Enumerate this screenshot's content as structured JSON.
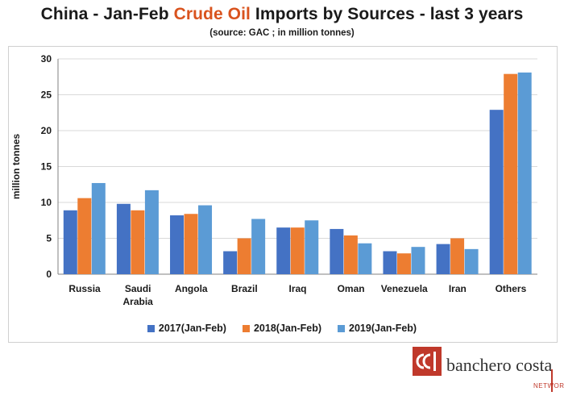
{
  "header": {
    "title_pre": "China - Jan-Feb ",
    "title_highlight": "Crude Oil",
    "title_post": " Imports by Sources - last 3 years",
    "subtitle": "(source: GAC ; in million tonnes)"
  },
  "logo": {
    "mark_icon": "cbc-logo-mark",
    "brand_name": "banchero costa",
    "network_label": "NETWORK"
  },
  "colors": {
    "series": [
      "#4472c4",
      "#ed7d31",
      "#5b9bd5"
    ],
    "title_highlight": "#d9531e",
    "logo_accent": "#c0392b"
  },
  "chart_data": {
    "type": "bar",
    "title": "China - Jan-Feb Crude Oil Imports by Sources - last 3 years",
    "subtitle": "(source: GAC ; in million tonnes)",
    "xlabel": "",
    "ylabel": "million tonnes",
    "ylim": [
      0,
      30
    ],
    "yticks": [
      0,
      5,
      10,
      15,
      20,
      25,
      30
    ],
    "grid": true,
    "legend": "bottom",
    "categories": [
      "Russia",
      "Saudi Arabia",
      "Angola",
      "Brazil",
      "Iraq",
      "Oman",
      "Venezuela",
      "Iran",
      "Others"
    ],
    "category_lines": [
      [
        "Russia"
      ],
      [
        "Saudi",
        "Arabia"
      ],
      [
        "Angola"
      ],
      [
        "Brazil"
      ],
      [
        "Iraq"
      ],
      [
        "Oman"
      ],
      [
        "Venezuela"
      ],
      [
        "Iran"
      ],
      [
        "Others"
      ]
    ],
    "series": [
      {
        "name": "2017(Jan-Feb)",
        "values": [
          8.9,
          9.8,
          8.2,
          3.2,
          6.5,
          6.3,
          3.2,
          4.2,
          22.9
        ]
      },
      {
        "name": "2018(Jan-Feb)",
        "values": [
          10.6,
          8.9,
          8.4,
          5.0,
          6.5,
          5.4,
          2.9,
          5.0,
          27.9
        ]
      },
      {
        "name": "2019(Jan-Feb)",
        "values": [
          12.7,
          11.7,
          9.6,
          7.7,
          7.5,
          4.3,
          3.8,
          3.5,
          28.1
        ]
      }
    ]
  }
}
